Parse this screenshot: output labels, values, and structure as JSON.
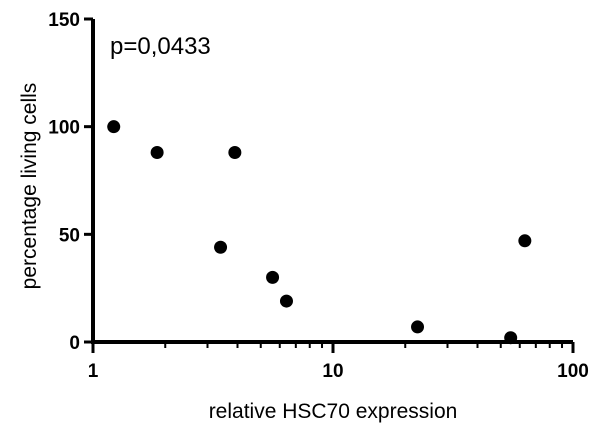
{
  "chart_data": {
    "type": "scatter",
    "title": "",
    "annotation": "p=0,0433",
    "xlabel": "relative HSC70 expression",
    "ylabel": "percentage living cells",
    "x_scale": "log",
    "xlim": [
      1,
      100
    ],
    "ylim": [
      0,
      150
    ],
    "x_ticks": [
      1,
      10,
      100
    ],
    "x_tick_labels": [
      "1",
      "10",
      "100"
    ],
    "y_ticks": [
      0,
      50,
      100,
      150
    ],
    "y_tick_labels": [
      "0",
      "50",
      "100",
      "150"
    ],
    "grid": false,
    "points": [
      {
        "x": 1.22,
        "y": 100
      },
      {
        "x": 1.85,
        "y": 88
      },
      {
        "x": 3.4,
        "y": 44
      },
      {
        "x": 3.9,
        "y": 88
      },
      {
        "x": 5.6,
        "y": 30
      },
      {
        "x": 6.4,
        "y": 19
      },
      {
        "x": 22.5,
        "y": 7
      },
      {
        "x": 55,
        "y": 2
      },
      {
        "x": 63,
        "y": 47
      }
    ],
    "marker_color": "#000000"
  }
}
